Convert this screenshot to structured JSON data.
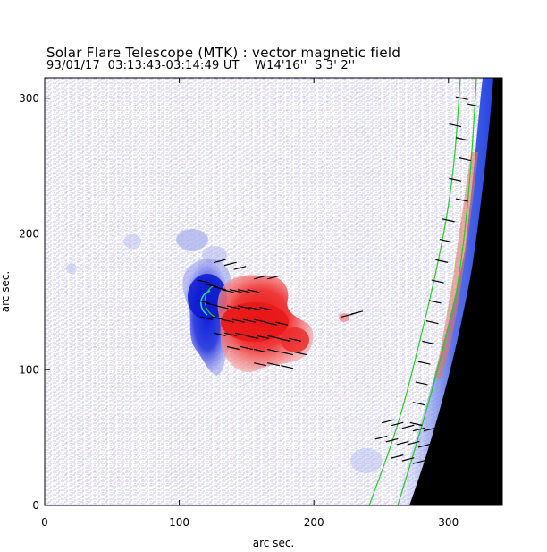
{
  "header": {
    "title": "Solar Flare Telescope (MTK) : vector magnetic field",
    "subtitle": "93/01/17  03:13:43-03:14:49 UT    W14'16''  S 3' 2''"
  },
  "chart_data": {
    "type": "heatmap",
    "description_of_content": "vector magnetogram",
    "xlabel": "arc sec.",
    "ylabel": "arc sec.",
    "xlim": [
      0,
      340
    ],
    "ylim": [
      0,
      315
    ],
    "xticks": [
      0,
      100,
      200,
      300
    ],
    "yticks": [
      0,
      100,
      200,
      300
    ],
    "xtick_labels": [
      "0",
      "100",
      "200",
      "300"
    ],
    "ytick_labels": [
      "0",
      "100",
      "200",
      "300"
    ],
    "grid": false,
    "colors": {
      "negative_polarity": "#2233dd",
      "positive_polarity": "#ee2222",
      "noise_blue": "#aab0ee",
      "noise_red": "#f0a0a0",
      "contour": "#22cc22",
      "limb_off_disk": "#000000",
      "vectors": "#000000"
    },
    "features": {
      "negative_region_center": [
        125,
        150
      ],
      "positive_region_center": [
        160,
        135
      ],
      "limb_x_at_y0": 268,
      "limb_x_at_y315": 330
    },
    "vectors": [
      [
        118,
        165,
        1
      ],
      [
        124,
        162,
        1
      ],
      [
        130,
        160,
        1
      ],
      [
        136,
        158,
        1
      ],
      [
        142,
        158,
        1
      ],
      [
        148,
        158,
        1
      ],
      [
        155,
        158,
        1
      ],
      [
        118,
        150,
        1
      ],
      [
        124,
        148,
        1
      ],
      [
        132,
        146,
        1
      ],
      [
        140,
        146,
        1
      ],
      [
        148,
        146,
        1
      ],
      [
        156,
        145,
        1
      ],
      [
        164,
        145,
        1
      ],
      [
        120,
        138,
        1
      ],
      [
        128,
        138,
        1
      ],
      [
        136,
        136,
        1
      ],
      [
        144,
        136,
        1
      ],
      [
        152,
        136,
        1
      ],
      [
        160,
        136,
        1
      ],
      [
        168,
        134,
        1
      ],
      [
        176,
        134,
        1
      ],
      [
        130,
        126,
        1
      ],
      [
        138,
        126,
        1
      ],
      [
        146,
        126,
        1
      ],
      [
        154,
        124,
        1
      ],
      [
        162,
        124,
        1
      ],
      [
        170,
        124,
        1
      ],
      [
        178,
        122,
        1
      ],
      [
        186,
        122,
        1
      ],
      [
        140,
        116,
        1
      ],
      [
        150,
        116,
        1
      ],
      [
        160,
        114,
        1
      ],
      [
        170,
        114,
        1
      ],
      [
        180,
        112,
        1
      ],
      [
        190,
        112,
        1
      ],
      [
        160,
        104,
        1
      ],
      [
        170,
        104,
        1
      ],
      [
        180,
        102,
        1
      ],
      [
        130,
        180,
        0
      ],
      [
        138,
        178,
        0
      ],
      [
        145,
        175,
        0
      ],
      [
        160,
        168,
        0
      ],
      [
        170,
        168,
        0
      ],
      [
        225,
        140,
        0
      ],
      [
        232,
        142,
        0
      ],
      [
        255,
        62,
        0
      ],
      [
        262,
        60,
        0
      ],
      [
        270,
        58,
        0
      ],
      [
        278,
        56,
        0
      ],
      [
        286,
        56,
        0
      ],
      [
        250,
        50,
        0
      ],
      [
        258,
        48,
        0
      ],
      [
        266,
        46,
        0
      ],
      [
        274,
        46,
        0
      ],
      [
        282,
        44,
        0
      ],
      [
        262,
        36,
        0
      ],
      [
        270,
        34,
        0
      ],
      [
        278,
        32,
        0
      ],
      [
        305,
        280,
        1
      ],
      [
        310,
        270,
        1
      ],
      [
        312,
        255,
        1
      ],
      [
        305,
        240,
        1
      ],
      [
        310,
        225,
        1
      ],
      [
        300,
        210,
        1
      ],
      [
        298,
        195,
        1
      ],
      [
        295,
        180,
        1
      ],
      [
        292,
        165,
        1
      ],
      [
        290,
        150,
        1
      ],
      [
        288,
        135,
        1
      ],
      [
        285,
        120,
        1
      ],
      [
        282,
        105,
        1
      ],
      [
        280,
        90,
        1
      ],
      [
        278,
        75,
        1
      ],
      [
        276,
        60,
        1
      ],
      [
        310,
        300,
        1
      ],
      [
        318,
        295,
        1
      ]
    ]
  }
}
